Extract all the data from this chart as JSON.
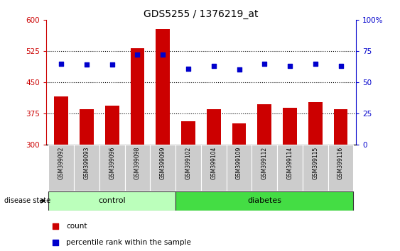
{
  "title": "GDS5255 / 1376219_at",
  "samples": [
    "GSM399092",
    "GSM399093",
    "GSM399096",
    "GSM399098",
    "GSM399099",
    "GSM399102",
    "GSM399104",
    "GSM399109",
    "GSM399112",
    "GSM399114",
    "GSM399115",
    "GSM399116"
  ],
  "counts": [
    415,
    385,
    393,
    532,
    578,
    355,
    385,
    350,
    397,
    388,
    402,
    385
  ],
  "percentiles": [
    65,
    64,
    64,
    72,
    72,
    61,
    63,
    60,
    65,
    63,
    65,
    63
  ],
  "groups": [
    "control",
    "control",
    "control",
    "control",
    "control",
    "diabetes",
    "diabetes",
    "diabetes",
    "diabetes",
    "diabetes",
    "diabetes",
    "diabetes"
  ],
  "ylim_left": [
    300,
    600
  ],
  "ylim_right": [
    0,
    100
  ],
  "yticks_left": [
    300,
    375,
    450,
    525,
    600
  ],
  "yticks_right": [
    0,
    25,
    50,
    75,
    100
  ],
  "bar_color": "#cc0000",
  "dot_color": "#0000cc",
  "bar_bottom": 300,
  "control_color": "#aaffaa",
  "diabetes_color": "#55dd55",
  "dotted_line_color": "black",
  "left_tick_color": "#cc0000",
  "right_tick_color": "#0000cc",
  "tick_label_bg": "#cccccc",
  "group_border_color": "#333333"
}
